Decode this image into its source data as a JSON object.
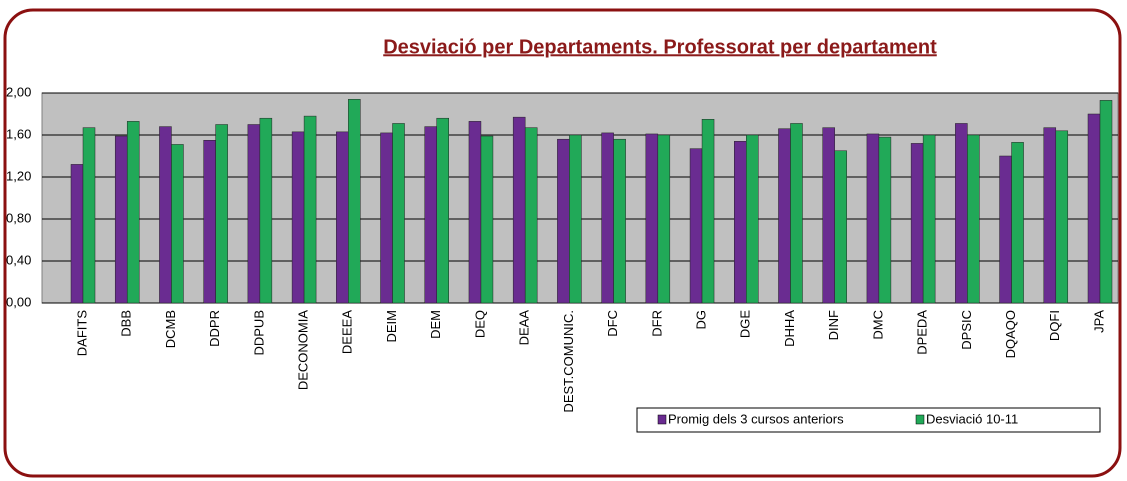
{
  "chart_data": {
    "type": "bar",
    "title": "Desviació per Departaments. Professorat per departament",
    "categories": [
      "DAFITS",
      "DBB",
      "DCMB",
      "DDPR",
      "DDPUB",
      "DECONOMIA",
      "DEEEA",
      "DEIM",
      "DEM",
      "DEQ",
      "DEAA",
      "DEST.COMUNIC.",
      "DFC",
      "DFR",
      "DG",
      "DGE",
      "DHHA",
      "DINF",
      "DMC",
      "DPEDA",
      "DPSIC",
      "DQAQO",
      "DQFI",
      "JPA"
    ],
    "series": [
      {
        "name": "Promig dels 3 cursos anteriors",
        "color": "#6a2c91",
        "values": [
          1.32,
          1.59,
          1.68,
          1.55,
          1.7,
          1.63,
          1.63,
          1.62,
          1.68,
          1.73,
          1.77,
          1.56,
          1.62,
          1.61,
          1.47,
          1.54,
          1.66,
          1.67,
          1.61,
          1.52,
          1.71,
          1.4,
          1.67,
          1.8
        ]
      },
      {
        "name": "Desviació 10-11",
        "color": "#21a958",
        "values": [
          1.67,
          1.73,
          1.51,
          1.7,
          1.76,
          1.78,
          1.94,
          1.71,
          1.76,
          1.59,
          1.67,
          1.6,
          1.56,
          1.6,
          1.75,
          1.6,
          1.71,
          1.45,
          1.58,
          1.6,
          1.6,
          1.53,
          1.64,
          1.93
        ]
      }
    ],
    "ylim": [
      0,
      2
    ],
    "yticks": [
      {
        "value": 0,
        "label": "0,00"
      },
      {
        "value": 0.4,
        "label": "0,40"
      },
      {
        "value": 0.8,
        "label": "0,80"
      },
      {
        "value": 1.2,
        "label": "1,20"
      },
      {
        "value": 1.6,
        "label": "1,60"
      },
      {
        "value": 2.0,
        "label": "2,00"
      }
    ],
    "grid": true
  }
}
